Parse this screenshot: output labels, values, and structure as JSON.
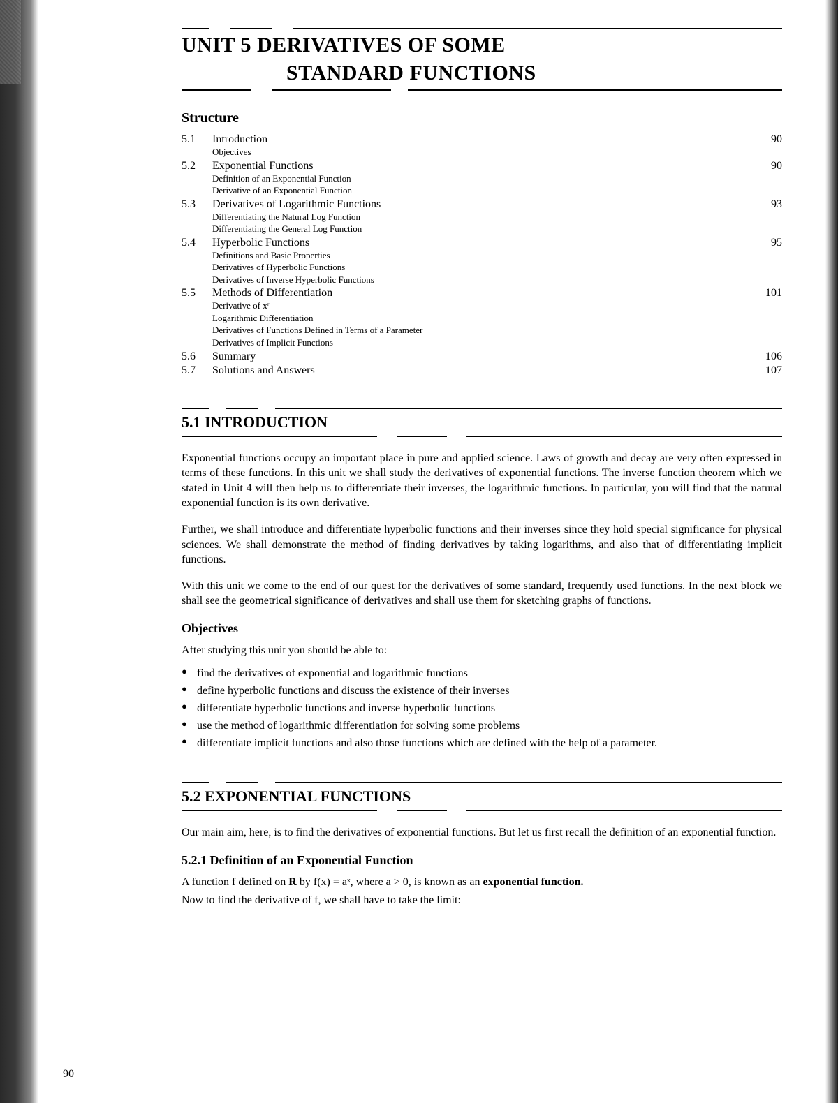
{
  "title_line1": "UNIT 5   DERIVATIVES OF SOME",
  "title_line2": "STANDARD FUNCTIONS",
  "structure_heading": "Structure",
  "toc": [
    {
      "num": "5.1",
      "title": "Introduction",
      "page": "90",
      "subs": [
        "Objectives"
      ]
    },
    {
      "num": "5.2",
      "title": "Exponential Functions",
      "page": "90",
      "subs": [
        "Definition of an Exponential Function",
        "Derivative of an Exponential Function"
      ]
    },
    {
      "num": "5.3",
      "title": "Derivatives of Logarithmic Functions",
      "page": "93",
      "subs": [
        "Differentiating the Natural Log Function",
        "Differentiating the General Log Function"
      ]
    },
    {
      "num": "5.4",
      "title": "Hyperbolic Functions",
      "page": "95",
      "subs": [
        "Definitions and Basic Properties",
        "Derivatives of Hyperbolic Functions",
        "Derivatives of Inverse Hyperbolic Functions"
      ]
    },
    {
      "num": "5.5",
      "title": "Methods of Differentiation",
      "page": "101",
      "subs": [
        "Derivative of xʳ",
        "Logarithmic Differentiation",
        "Derivatives of Functions Defined in Terms of a Parameter",
        "Derivatives of Implicit Functions"
      ]
    },
    {
      "num": "5.6",
      "title": "Summary",
      "page": "106",
      "subs": []
    },
    {
      "num": "5.7",
      "title": "Solutions and Answers",
      "page": "107",
      "subs": []
    }
  ],
  "s51_heading": "5.1   INTRODUCTION",
  "s51_p1": "Exponential functions occupy an important place in pure and applied science. Laws of growth and decay are very often expressed in terms of these functions. In this unit we shall study the derivatives of exponential functions. The inverse function theorem which we stated in Unit 4 will then help us to differentiate their inverses, the logarithmic functions. In particular, you will find that the natural exponential function is its own derivative.",
  "s51_p2": "Further, we shall introduce and differentiate hyperbolic functions and their inverses since they hold special significance for physical sciences. We shall demonstrate the method of finding derivatives by taking logarithms, and also that of differentiating implicit functions.",
  "s51_p3": "With this unit we come to the end of our quest for the derivatives of some standard, frequently used functions. In the next block we shall see the geometrical significance of derivatives and shall use them for sketching graphs of functions.",
  "objectives_heading": "Objectives",
  "objectives_intro": "After studying this unit you should be able to:",
  "objectives": [
    "find the derivatives of exponential and logarithmic functions",
    "define hyperbolic functions and discuss the existence of their inverses",
    "differentiate hyperbolic functions and inverse hyperbolic functions",
    "use the method of logarithmic differentiation for solving some problems",
    "differentiate implicit functions and also those functions which are defined with the help of a parameter."
  ],
  "s52_heading": "5.2   EXPONENTIAL FUNCTIONS",
  "s52_p1": "Our main aim, here, is to find the derivatives of exponential functions. But let us first recall the definition of an exponential function.",
  "s521_heading": "5.2.1 Definition of an Exponential Function",
  "s521_p1_a": "A function f defined on ",
  "s521_p1_b": "R",
  "s521_p1_c": " by f(x) = aˣ, where a > 0, is known as an ",
  "s521_p1_d": "exponential function.",
  "s521_p2": "Now to find the derivative of f, we shall have to take the limit:",
  "page_number": "90"
}
